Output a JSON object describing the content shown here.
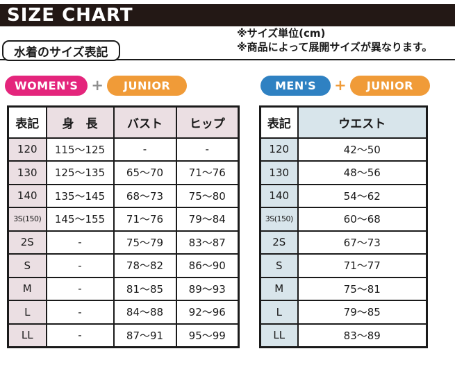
{
  "page": {
    "title": "SIZE CHART",
    "note_1": "※サイズ単位(cm)",
    "note_2": "※商品によって展開サイズが異なります。",
    "section_label": "水着のサイズ表記"
  },
  "badges": {
    "womens": "WOMEN'S",
    "mens": "MEN'S",
    "junior": "JUNIOR",
    "plus": "+"
  },
  "colors": {
    "title_bar_black": "#231815",
    "womens_pink": "#e4257c",
    "mens_blue": "#2f81c2",
    "junior_orange": "#f09b38",
    "plus_gray": "#8f8f8f",
    "table_header_pink": "#ebdfe3",
    "table_header_blue": "#d8e5eb"
  },
  "womens_table": {
    "headers": [
      "表記",
      "身　長",
      "バスト",
      "ヒップ"
    ],
    "rows": [
      [
        "120",
        "115～125",
        "-",
        "-"
      ],
      [
        "130",
        "125～135",
        "65～70",
        "71～76"
      ],
      [
        "140",
        "135～145",
        "68～73",
        "75～80"
      ],
      [
        "3S(150)",
        "145～155",
        "71～76",
        "79～84"
      ],
      [
        "2S",
        "-",
        "75～79",
        "83～87"
      ],
      [
        "S",
        "-",
        "78～82",
        "86～90"
      ],
      [
        "M",
        "-",
        "81～85",
        "89～93"
      ],
      [
        "L",
        "-",
        "84～88",
        "92～96"
      ],
      [
        "LL",
        "-",
        "87～91",
        "95～99"
      ]
    ]
  },
  "mens_table": {
    "headers": [
      "表記",
      "ウエスト"
    ],
    "rows": [
      [
        "120",
        "42～50"
      ],
      [
        "130",
        "48～56"
      ],
      [
        "140",
        "54～62"
      ],
      [
        "3S(150)",
        "60～68"
      ],
      [
        "2S",
        "67～73"
      ],
      [
        "S",
        "71～77"
      ],
      [
        "M",
        "75～81"
      ],
      [
        "L",
        "79～85"
      ],
      [
        "LL",
        "83～89"
      ]
    ]
  }
}
